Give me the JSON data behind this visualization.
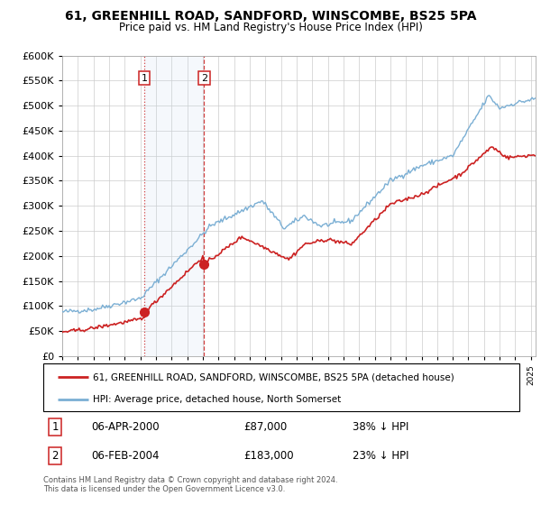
{
  "title1": "61, GREENHILL ROAD, SANDFORD, WINSCOMBE, BS25 5PA",
  "title2": "Price paid vs. HM Land Registry's House Price Index (HPI)",
  "ylim": [
    0,
    600000
  ],
  "xlim_start": 1995.0,
  "xlim_end": 2025.3,
  "hpi_color": "#7bafd4",
  "price_color": "#cc2222",
  "transaction1_date": 2000.25,
  "transaction1_price": 87000,
  "transaction2_date": 2004.08,
  "transaction2_price": 183000,
  "legend_line1": "61, GREENHILL ROAD, SANDFORD, WINSCOMBE, BS25 5PA (detached house)",
  "legend_line2": "HPI: Average price, detached house, North Somerset",
  "footnote": "Contains HM Land Registry data © Crown copyright and database right 2024.\nThis data is licensed under the Open Government Licence v3.0.",
  "table_row1_date": "06-APR-2000",
  "table_row1_price": "£87,000",
  "table_row1_hpi": "38% ↓ HPI",
  "table_row2_date": "06-FEB-2004",
  "table_row2_price": "£183,000",
  "table_row2_hpi": "23% ↓ HPI",
  "bg_shade_color": "#ddeeff",
  "vline1_style": "dotted",
  "vline2_style": "dashed",
  "vline_color": "#cc2222"
}
